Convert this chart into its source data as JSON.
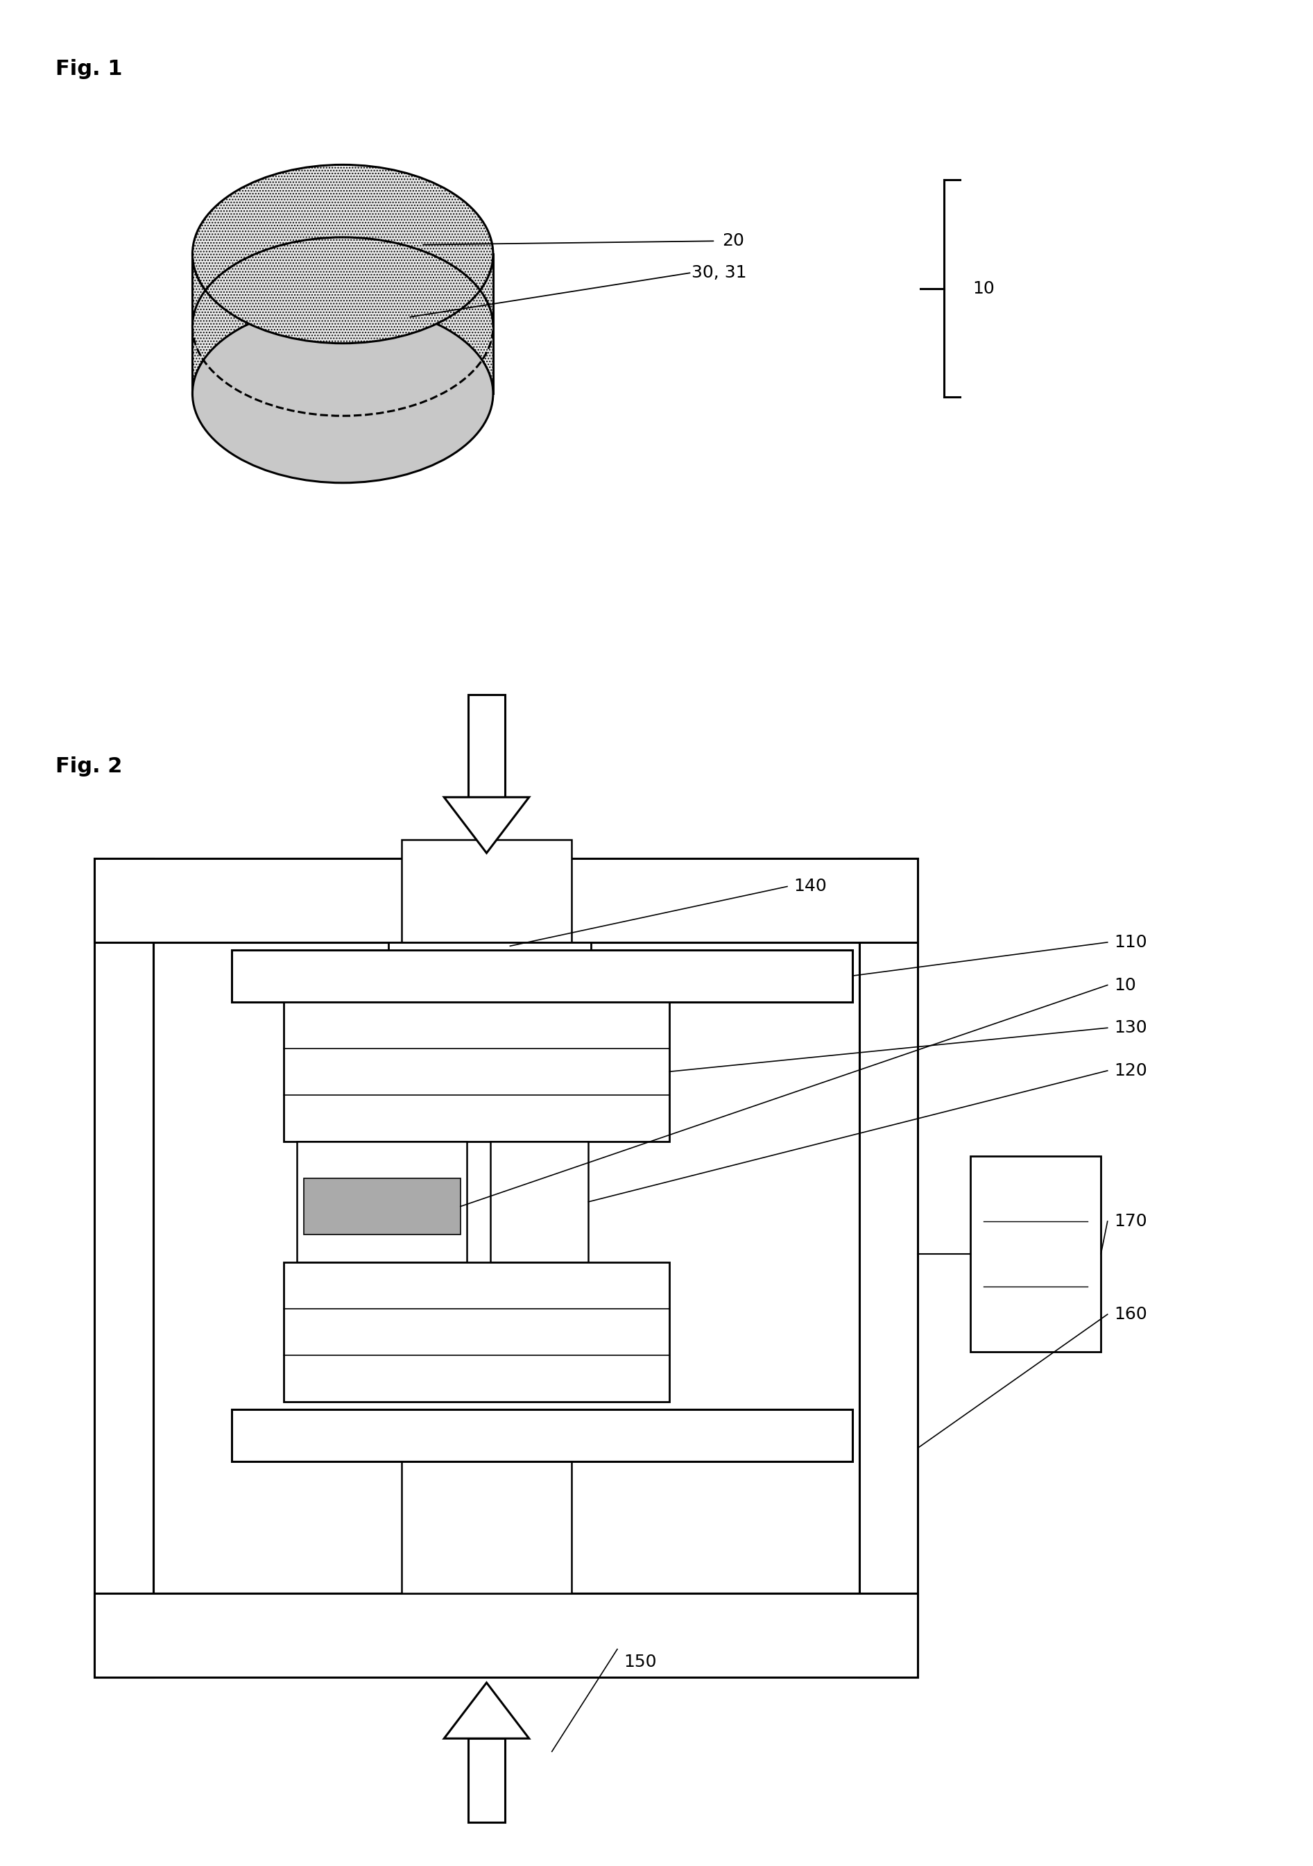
{
  "fig1_label": "Fig. 1",
  "fig2_label": "Fig. 2",
  "background_color": "#ffffff",
  "label_fontsize": 22,
  "ref_fontsize": 18,
  "line_color": "#000000"
}
